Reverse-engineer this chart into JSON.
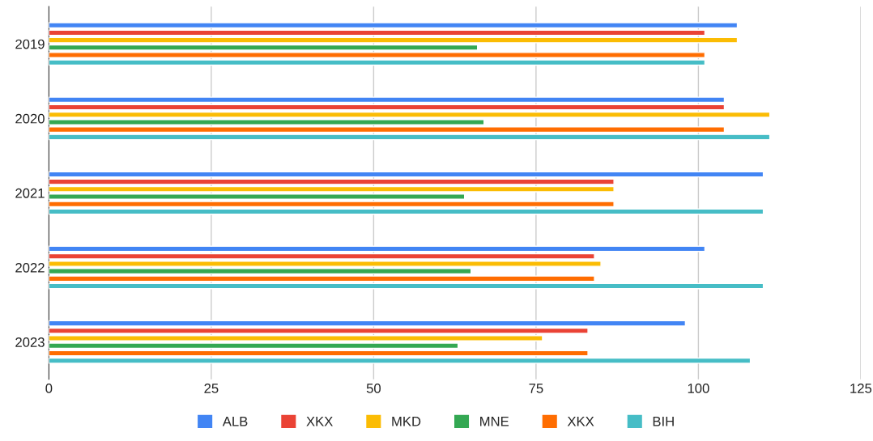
{
  "chart_data": {
    "type": "bar",
    "orientation": "horizontal",
    "categories": [
      "2019",
      "2020",
      "2021",
      "2022",
      "2023"
    ],
    "series": [
      {
        "name": "ALB",
        "color": "#4285f4",
        "values": [
          106,
          104,
          110,
          101,
          98
        ]
      },
      {
        "name": "XKX",
        "color": "#ea4335",
        "values": [
          101,
          104,
          87,
          84,
          83
        ]
      },
      {
        "name": "MKD",
        "color": "#fbbc04",
        "values": [
          106,
          111,
          87,
          85,
          76
        ]
      },
      {
        "name": "MNE",
        "color": "#34a853",
        "values": [
          66,
          67,
          64,
          65,
          63
        ]
      },
      {
        "name": "XKX",
        "color": "#ff6d01",
        "values": [
          101,
          104,
          87,
          84,
          83
        ]
      },
      {
        "name": "BIH",
        "color": "#46bdc6",
        "values": [
          101,
          111,
          110,
          110,
          108
        ]
      }
    ],
    "xlim": [
      0,
      125
    ],
    "xticks": [
      0,
      25,
      50,
      75,
      100,
      125
    ],
    "grid": "x",
    "legend": "bottom"
  }
}
